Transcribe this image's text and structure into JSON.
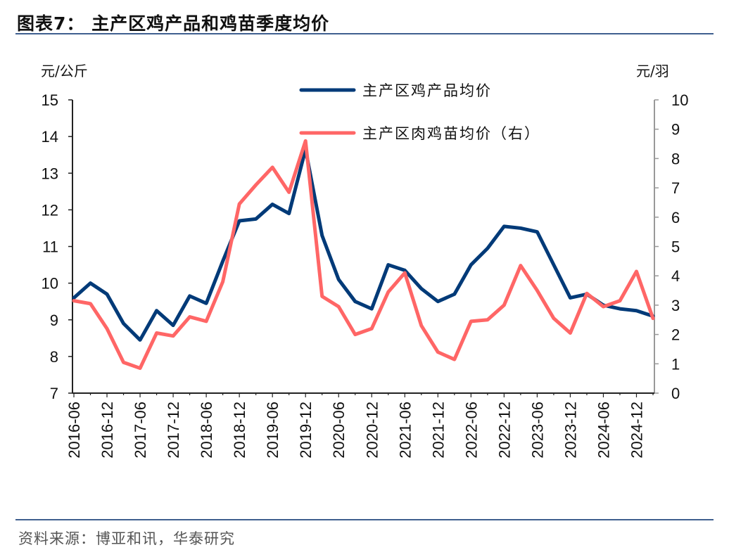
{
  "title": "图表7：  主产区鸡产品和鸡苗季度均价",
  "source": "资料来源：博亚和讯，华泰研究",
  "chart_data": {
    "type": "line",
    "title": "图表7：  主产区鸡产品和鸡苗季度均价",
    "ylabel_left": "元/公斤",
    "ylabel_right": "元/羽",
    "ylim_left": [
      7,
      15
    ],
    "ylim_right": [
      0,
      10
    ],
    "yticks_left": [
      7,
      8,
      9,
      10,
      11,
      12,
      13,
      14,
      15
    ],
    "yticks_right": [
      0,
      1,
      2,
      3,
      4,
      5,
      6,
      7,
      8,
      9,
      10
    ],
    "grid": false,
    "legend": "top-center",
    "categories": [
      "2016-06",
      "2016-09",
      "2016-12",
      "2017-03",
      "2017-06",
      "2017-09",
      "2017-12",
      "2018-03",
      "2018-06",
      "2018-09",
      "2018-12",
      "2019-03",
      "2019-06",
      "2019-09",
      "2019-12",
      "2020-03",
      "2020-06",
      "2020-09",
      "2020-12",
      "2021-03",
      "2021-06",
      "2021-09",
      "2021-12",
      "2022-03",
      "2022-06",
      "2022-09",
      "2022-12",
      "2023-03",
      "2023-06",
      "2023-09",
      "2023-12",
      "2024-03",
      "2024-06",
      "2024-09",
      "2024-12",
      "2025-03"
    ],
    "xtick_labels": [
      "2016-06",
      "2016-12",
      "2017-06",
      "2017-12",
      "2018-06",
      "2018-12",
      "2019-06",
      "2019-12",
      "2020-06",
      "2020-12",
      "2021-06",
      "2021-12",
      "2022-06",
      "2022-12",
      "2023-06",
      "2023-12",
      "2024-06",
      "2024-12"
    ],
    "series": [
      {
        "name": "主产区鸡产品均价",
        "axis": "left",
        "color": "#003a78",
        "values": [
          9.6,
          10.0,
          9.7,
          8.9,
          8.45,
          9.25,
          8.85,
          9.65,
          9.45,
          10.6,
          11.7,
          11.75,
          12.15,
          11.9,
          13.65,
          11.3,
          10.1,
          9.5,
          9.3,
          10.5,
          10.35,
          9.85,
          9.5,
          9.7,
          10.5,
          10.95,
          11.55,
          11.5,
          11.4,
          10.5,
          9.6,
          9.7,
          9.4,
          9.3,
          9.25,
          9.1
        ]
      },
      {
        "name": "主产区肉鸡苗均价（右）",
        "axis": "right",
        "color": "#ff6666",
        "values": [
          3.15,
          3.05,
          2.2,
          1.05,
          0.85,
          2.05,
          1.95,
          2.6,
          2.45,
          3.8,
          6.45,
          7.1,
          7.7,
          6.85,
          8.6,
          3.3,
          2.95,
          2.0,
          2.2,
          3.45,
          4.1,
          2.3,
          1.4,
          1.15,
          2.45,
          2.5,
          3.0,
          4.35,
          3.5,
          2.55,
          2.05,
          3.4,
          2.95,
          3.15,
          4.15,
          2.55
        ]
      }
    ]
  }
}
